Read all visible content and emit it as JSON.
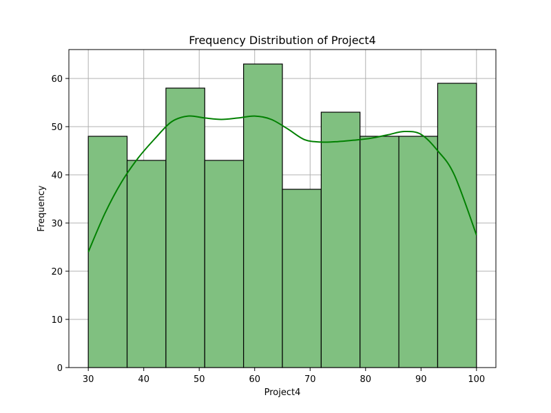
{
  "chart_data": {
    "type": "bar",
    "subtype": "histogram-with-kde",
    "title": "Frequency Distribution of Project4",
    "xlabel": "Project4",
    "ylabel": "Frequency",
    "xlim": [
      26.5,
      103.5
    ],
    "ylim": [
      0,
      66
    ],
    "x_ticks": [
      30,
      40,
      50,
      60,
      70,
      80,
      90,
      100
    ],
    "y_ticks": [
      0,
      10,
      20,
      30,
      40,
      50,
      60
    ],
    "grid": true,
    "bar_color": "#80c080",
    "edge_color": "#000000",
    "kde_color": "#008000",
    "bins": [
      {
        "start": 30,
        "end": 37,
        "count": 48
      },
      {
        "start": 37,
        "end": 44,
        "count": 43
      },
      {
        "start": 44,
        "end": 51,
        "count": 58
      },
      {
        "start": 51,
        "end": 58,
        "count": 43
      },
      {
        "start": 58,
        "end": 65,
        "count": 63
      },
      {
        "start": 65,
        "end": 72,
        "count": 37
      },
      {
        "start": 72,
        "end": 79,
        "count": 53
      },
      {
        "start": 79,
        "end": 86,
        "count": 48
      },
      {
        "start": 86,
        "end": 93,
        "count": 48
      },
      {
        "start": 93,
        "end": 100,
        "count": 59
      }
    ],
    "kde": {
      "x": [
        30,
        33,
        36,
        39,
        42,
        45,
        48,
        51,
        54,
        57,
        60,
        63,
        66,
        69,
        72,
        75,
        78,
        81,
        84,
        87,
        90,
        93,
        96,
        100
      ],
      "y": [
        24,
        32,
        38.5,
        43.5,
        47.5,
        51,
        52.2,
        51.8,
        51.5,
        51.8,
        52.2,
        51.5,
        49.5,
        47.3,
        46.8,
        46.9,
        47.2,
        47.6,
        48.3,
        49,
        48.4,
        45,
        40,
        27.5
      ]
    }
  }
}
